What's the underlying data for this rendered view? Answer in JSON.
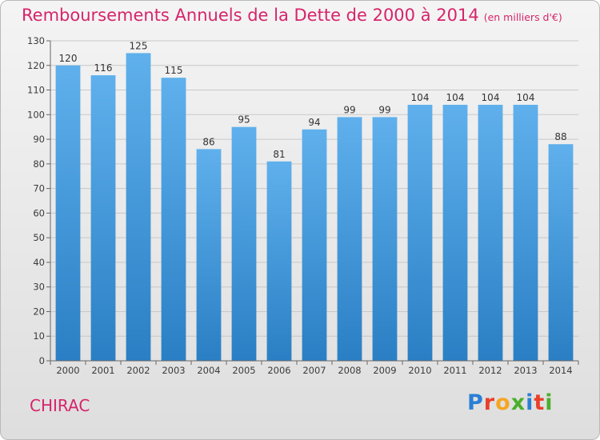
{
  "chart_data": {
    "type": "bar",
    "title": "Remboursements Annuels de la Dette de 2000 à 2014",
    "subtitle": "(en milliers d'€)",
    "categories": [
      "2000",
      "2001",
      "2002",
      "2003",
      "2004",
      "2005",
      "2006",
      "2007",
      "2008",
      "2009",
      "2010",
      "2011",
      "2012",
      "2013",
      "2014"
    ],
    "values": [
      120,
      116,
      125,
      115,
      86,
      95,
      81,
      94,
      99,
      99,
      104,
      104,
      104,
      104,
      88
    ],
    "ylim": [
      0,
      130
    ],
    "yticks": [
      0,
      10,
      20,
      30,
      40,
      50,
      60,
      70,
      80,
      90,
      100,
      110,
      120,
      130
    ],
    "grid": true,
    "legend": "none",
    "bar_color_top": "#5fb0ec",
    "bar_color_bottom": "#2a7fc4",
    "title_color": "#d6246a"
  },
  "commune": "CHIRAC",
  "logo": {
    "text": "Proxiti",
    "letter_colors": [
      "#2a7fd4",
      "#e8402a",
      "#f5a623",
      "#4caf2a",
      "#2a7fd4",
      "#e8402a",
      "#4caf2a"
    ]
  }
}
